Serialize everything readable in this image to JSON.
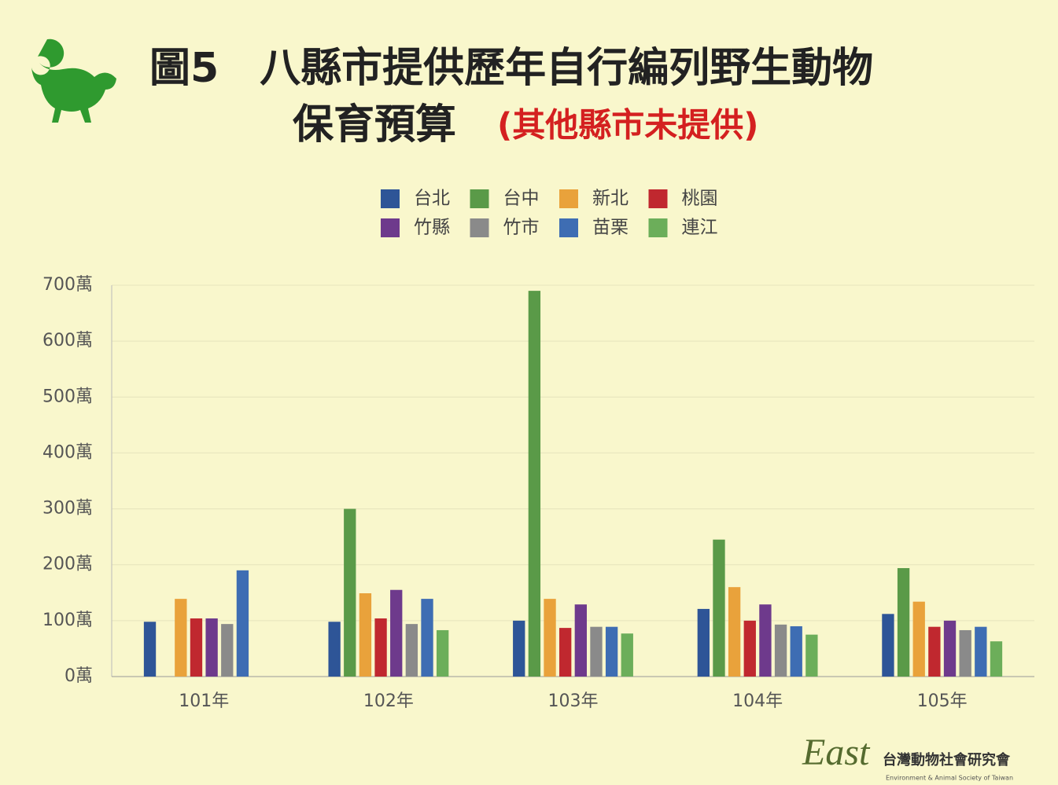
{
  "chart_data": {
    "type": "bar",
    "title": [
      "圖5　八縣市提供歷年自行編列野生動物",
      "保育預算"
    ],
    "subtitle": "(其他縣市未提供)",
    "categories": [
      "101年",
      "102年",
      "103年",
      "104年",
      "105年"
    ],
    "series": [
      {
        "name": "台北",
        "color": "#2e5597",
        "values": [
          98,
          98,
          100,
          121,
          112
        ]
      },
      {
        "name": "台中",
        "color": "#5a9a48",
        "values": [
          null,
          300,
          690,
          245,
          194
        ]
      },
      {
        "name": "新北",
        "color": "#e9a23b",
        "values": [
          139,
          149,
          139,
          160,
          134
        ]
      },
      {
        "name": "桃園",
        "color": "#c0282f",
        "values": [
          104,
          104,
          87,
          100,
          89
        ]
      },
      {
        "name": "竹縣",
        "color": "#6e3a8c",
        "values": [
          104,
          155,
          129,
          129,
          100
        ]
      },
      {
        "name": "竹市",
        "color": "#8a8a8a",
        "values": [
          94,
          94,
          89,
          93,
          83
        ]
      },
      {
        "name": "苗栗",
        "color": "#3e6db3",
        "values": [
          190,
          139,
          89,
          90,
          89
        ]
      },
      {
        "name": "連江",
        "color": "#6cae5a",
        "values": [
          null,
          83,
          77,
          75,
          63
        ]
      }
    ],
    "ylim": [
      0,
      700
    ],
    "yticks": [
      {
        "value": 0,
        "label": "0萬"
      },
      {
        "value": 100,
        "label": "100萬"
      },
      {
        "value": 200,
        "label": "200萬"
      },
      {
        "value": 300,
        "label": "300萬"
      },
      {
        "value": 400,
        "label": "400萬"
      },
      {
        "value": 500,
        "label": "500萬"
      },
      {
        "value": 600,
        "label": "600萬"
      },
      {
        "value": 700,
        "label": "700萬"
      }
    ],
    "grid": true,
    "legend": "top",
    "logo": {
      "mark": "East",
      "name": "台灣動物社會研究會",
      "english": "Environment & Animal Society of Taiwan"
    }
  }
}
